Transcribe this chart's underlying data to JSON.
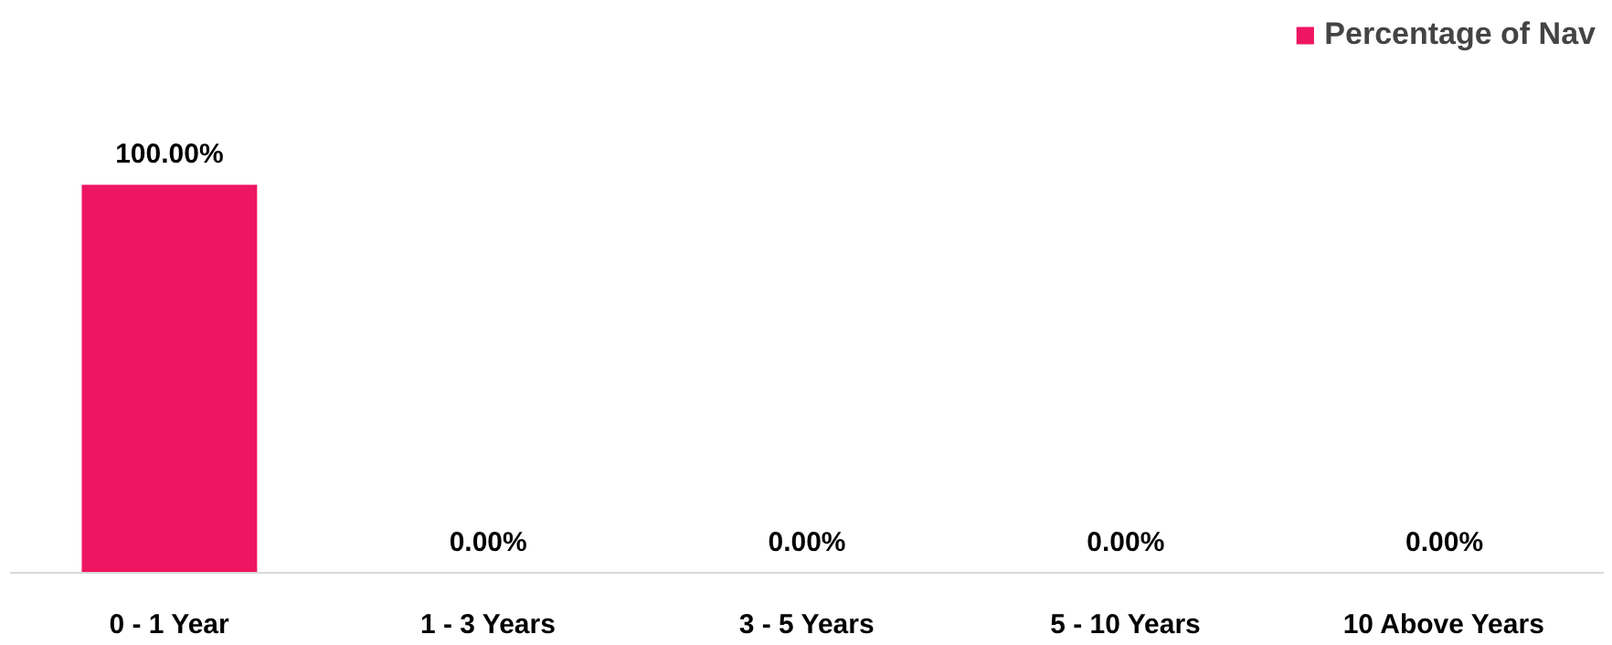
{
  "chart_data": {
    "type": "bar",
    "categories": [
      "0 - 1 Year",
      "1 - 3 Years",
      "3 - 5 Years",
      "5 - 10 Years",
      "10 Above Years"
    ],
    "series": [
      {
        "name": "Percentage of Nav",
        "color": "#ee1561",
        "values": [
          100,
          0,
          0,
          0,
          0
        ],
        "value_labels": [
          "100.00%",
          "0.00%",
          "0.00%",
          "0.00%",
          "0.00%"
        ]
      }
    ],
    "legend": "top right"
  }
}
